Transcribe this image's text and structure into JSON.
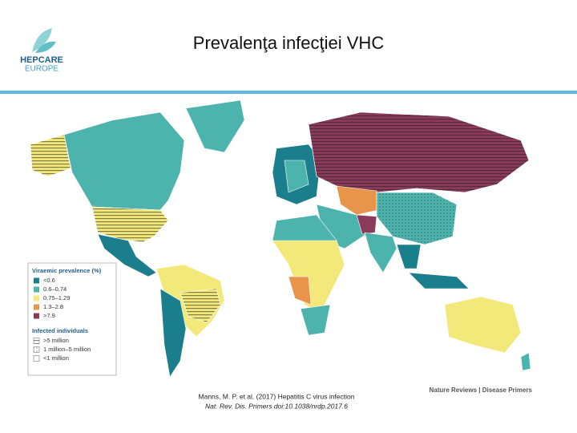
{
  "header": {
    "title": "Prevalenţa infecţiei VHC",
    "logo": {
      "name": "HEPCARE",
      "region": "EUROPE"
    }
  },
  "map": {
    "legend": {
      "prevalence_title": "Viraemic prevalence (%)",
      "prevalence_items": [
        "<0.6",
        "0.6–0.74",
        "0.75–1.29",
        "1.3–2.8",
        ">7.9"
      ],
      "individuals_title": "Infected individuals",
      "individuals_items": [
        ">5 million",
        "1 million–5 million",
        "<1 million"
      ]
    },
    "source": "Nature Reviews | Disease Primers"
  },
  "citation": {
    "line1": "Manns, M. P. et al. (2017) Hepatitis C virus infection",
    "line2": "Nat. Rev. Dis. Primers doi:10.1038/nrdp.2017.6"
  }
}
